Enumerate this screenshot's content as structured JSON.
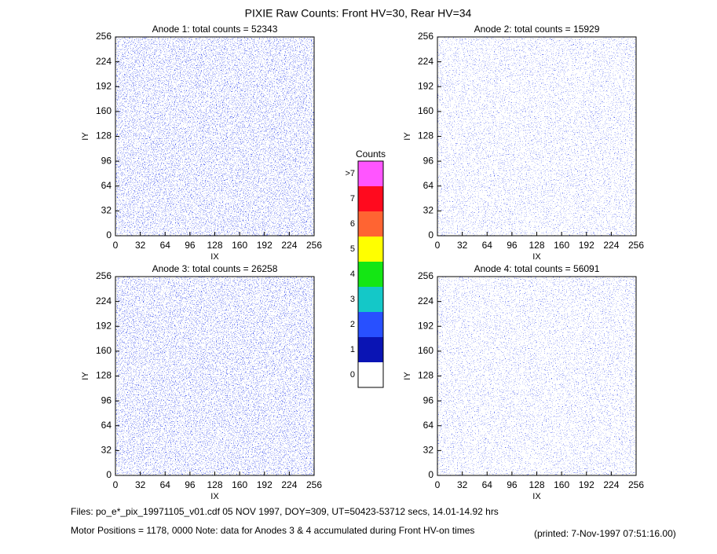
{
  "title": "PIXIE Raw Counts:  Front HV=30, Rear HV=34",
  "panels": [
    {
      "title": "Anode 1: total counts = 52343",
      "xlabel": "IX",
      "ylabel": "IY",
      "xlim": [
        0,
        256
      ],
      "ylim": [
        0,
        256
      ],
      "xticks": [
        0,
        32,
        64,
        96,
        128,
        160,
        192,
        224,
        256
      ],
      "yticks": [
        0,
        32,
        64,
        96,
        128,
        160,
        192,
        224,
        256
      ]
    },
    {
      "title": "Anode 2: total counts = 15929",
      "xlabel": "IX",
      "ylabel": "IY",
      "xlim": [
        0,
        256
      ],
      "ylim": [
        0,
        256
      ],
      "xticks": [
        0,
        32,
        64,
        96,
        128,
        160,
        192,
        224,
        256
      ],
      "yticks": [
        0,
        32,
        64,
        96,
        128,
        160,
        192,
        224,
        256
      ]
    },
    {
      "title": "Anode 3: total counts = 26258",
      "xlabel": "IX",
      "ylabel": "IY",
      "xlim": [
        0,
        256
      ],
      "ylim": [
        0,
        256
      ],
      "xticks": [
        0,
        32,
        64,
        96,
        128,
        160,
        192,
        224,
        256
      ],
      "yticks": [
        0,
        32,
        64,
        96,
        128,
        160,
        192,
        224,
        256
      ]
    },
    {
      "title": "Anode 4: total counts = 56091",
      "xlabel": "IX",
      "ylabel": "IY",
      "xlim": [
        0,
        256
      ],
      "ylim": [
        0,
        256
      ],
      "xticks": [
        0,
        32,
        64,
        96,
        128,
        160,
        192,
        224,
        256
      ],
      "yticks": [
        0,
        32,
        64,
        96,
        128,
        160,
        192,
        224,
        256
      ]
    }
  ],
  "colorbar": {
    "title": "Counts",
    "levels": [
      {
        "label": ">7",
        "color": "#ff55ff"
      },
      {
        "label": "7",
        "color": "#ff0a1e"
      },
      {
        "label": "6",
        "color": "#ff6432"
      },
      {
        "label": "5",
        "color": "#ffff00"
      },
      {
        "label": "4",
        "color": "#14e614"
      },
      {
        "label": "3",
        "color": "#14c8c8"
      },
      {
        "label": "2",
        "color": "#2850ff"
      },
      {
        "label": "1",
        "color": "#0a14b4"
      },
      {
        "label": "0",
        "color": "#ffffff"
      }
    ]
  },
  "footer": {
    "files": "Files: po_e*_pix_19971105_v01.cdf    05 NOV 1997, DOY=309, UT=50423-53712 secs, 14.01-14.92 hrs",
    "motor": "Motor Positions = 1178, 0000   Note: data for Anodes 3 & 4 accumulated during Front HV-on times",
    "printed": "(printed:  7-Nov-1997 07:51:16.00)"
  }
}
